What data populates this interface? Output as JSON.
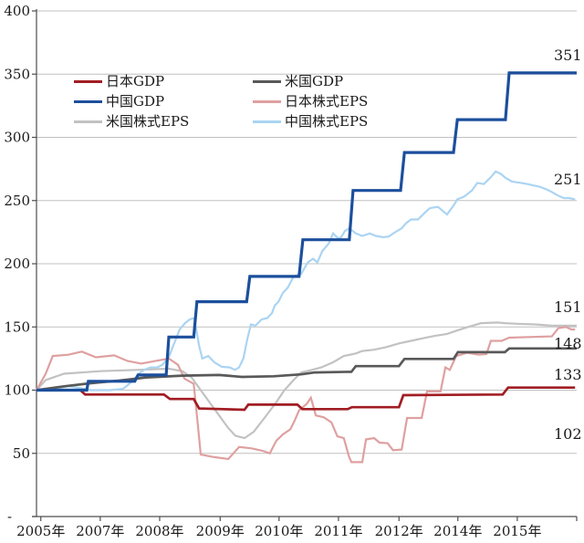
{
  "chart_data": {
    "type": "line",
    "title": "",
    "grid": true,
    "ylim": [
      0,
      400
    ],
    "ytick_step": 50,
    "y_ticks": [
      {
        "value": 0,
        "label": "-"
      },
      {
        "value": 50,
        "label": "50"
      },
      {
        "value": 100,
        "label": "100"
      },
      {
        "value": 150,
        "label": "150"
      },
      {
        "value": 200,
        "label": "200"
      },
      {
        "value": 250,
        "label": "250"
      },
      {
        "value": 300,
        "label": "300"
      },
      {
        "value": 350,
        "label": "350"
      },
      {
        "value": 400,
        "label": "400"
      }
    ],
    "x_ticks": [
      {
        "label": "2005年",
        "pos": 0.8
      },
      {
        "label": "2007年",
        "pos": 11.8
      },
      {
        "label": "2008年",
        "pos": 22.8
      },
      {
        "label": "2009年",
        "pos": 34.0
      },
      {
        "label": "2010年",
        "pos": 44.9
      },
      {
        "label": "2011年",
        "pos": 55.9
      },
      {
        "label": "2012年",
        "pos": 67.1
      },
      {
        "label": "2014年",
        "pos": 78.0
      },
      {
        "label": "2015年",
        "pos": 89.0
      }
    ],
    "legend_position": "top-left-two-columns",
    "series": [
      {
        "id": "us_eps",
        "label": "米国株式EPS",
        "color": "#C2C2C2",
        "width": 2.2,
        "points": [
          [
            0,
            100
          ],
          [
            1.7,
            108
          ],
          [
            5.1,
            113
          ],
          [
            11.8,
            115
          ],
          [
            18.6,
            116
          ],
          [
            24.5,
            117
          ],
          [
            27,
            115
          ],
          [
            28.7,
            110
          ],
          [
            30.4,
            100
          ],
          [
            32.1,
            90
          ],
          [
            33.8,
            80
          ],
          [
            35.5,
            70
          ],
          [
            36.8,
            64
          ],
          [
            38.5,
            62
          ],
          [
            40.2,
            67
          ],
          [
            42.2,
            78
          ],
          [
            44.3,
            90
          ],
          [
            45.9,
            100
          ],
          [
            47.6,
            108
          ],
          [
            49,
            114
          ],
          [
            51,
            116
          ],
          [
            52.7,
            118
          ],
          [
            54.9,
            122
          ],
          [
            56.9,
            127
          ],
          [
            59.1,
            129
          ],
          [
            60.3,
            131
          ],
          [
            62.5,
            132
          ],
          [
            64.7,
            134
          ],
          [
            67.1,
            137
          ],
          [
            69.3,
            139
          ],
          [
            71.5,
            141
          ],
          [
            73.8,
            143
          ],
          [
            76,
            144.5
          ],
          [
            77.7,
            147
          ],
          [
            79.9,
            150
          ],
          [
            82.3,
            153
          ],
          [
            85.3,
            153.5
          ],
          [
            86.7,
            153
          ],
          [
            89,
            152.5
          ],
          [
            92.4,
            152
          ],
          [
            95.4,
            151
          ],
          [
            100,
            151
          ]
        ]
      },
      {
        "id": "china_eps",
        "label": "中国株式EPS",
        "color": "#ABD4F2",
        "width": 2.2,
        "points": [
          [
            0,
            100
          ],
          [
            3.4,
            101
          ],
          [
            5.9,
            103
          ],
          [
            7.6,
            102
          ],
          [
            10.1,
            100
          ],
          [
            13.5,
            100
          ],
          [
            16,
            101
          ],
          [
            16.9,
            104
          ],
          [
            18.2,
            109
          ],
          [
            18.9,
            113
          ],
          [
            19.9,
            116
          ],
          [
            21.1,
            118
          ],
          [
            22.3,
            118
          ],
          [
            23.3,
            120
          ],
          [
            24.5,
            126
          ],
          [
            25.3,
            135
          ],
          [
            26.5,
            148
          ],
          [
            27.5,
            153
          ],
          [
            28.4,
            156
          ],
          [
            29.2,
            157
          ],
          [
            30.1,
            135
          ],
          [
            30.7,
            125
          ],
          [
            31.8,
            127
          ],
          [
            32.9,
            122
          ],
          [
            34.3,
            118.5
          ],
          [
            35.8,
            118
          ],
          [
            36.7,
            116
          ],
          [
            37.5,
            118
          ],
          [
            38.3,
            125
          ],
          [
            39,
            140
          ],
          [
            39.7,
            152
          ],
          [
            40.5,
            151
          ],
          [
            41.7,
            156
          ],
          [
            42.7,
            157
          ],
          [
            43.6,
            161
          ],
          [
            44.1,
            167
          ],
          [
            44.8,
            170
          ],
          [
            45.6,
            177
          ],
          [
            46.5,
            181
          ],
          [
            47.6,
            190
          ],
          [
            49,
            192
          ],
          [
            50.2,
            201
          ],
          [
            51.2,
            204
          ],
          [
            52,
            201
          ],
          [
            52.9,
            210
          ],
          [
            54.1,
            216
          ],
          [
            54.9,
            224
          ],
          [
            55.9,
            220
          ],
          [
            56.4,
            221
          ],
          [
            57.1,
            226
          ],
          [
            57.9,
            228
          ],
          [
            59.1,
            224
          ],
          [
            60.3,
            222
          ],
          [
            61.7,
            224
          ],
          [
            62.8,
            222
          ],
          [
            64.2,
            221
          ],
          [
            65.2,
            221.5
          ],
          [
            66.4,
            225
          ],
          [
            67.6,
            228
          ],
          [
            68.4,
            232
          ],
          [
            69.3,
            235
          ],
          [
            70.6,
            235
          ],
          [
            71.8,
            240
          ],
          [
            72.8,
            244
          ],
          [
            74.3,
            245
          ],
          [
            76,
            239
          ],
          [
            77.2,
            246
          ],
          [
            77.9,
            251
          ],
          [
            79.1,
            253
          ],
          [
            80.6,
            258
          ],
          [
            81.6,
            264
          ],
          [
            82.8,
            263
          ],
          [
            84,
            268
          ],
          [
            85,
            273
          ],
          [
            86,
            271
          ],
          [
            86.8,
            268
          ],
          [
            88,
            265
          ],
          [
            89.7,
            264
          ],
          [
            90.9,
            263
          ],
          [
            91.9,
            262
          ],
          [
            93.1,
            261
          ],
          [
            94.3,
            259
          ],
          [
            95.3,
            257
          ],
          [
            96.5,
            254
          ],
          [
            97.6,
            252
          ],
          [
            98.6,
            252
          ],
          [
            99.7,
            251
          ]
        ]
      },
      {
        "id": "japan_eps",
        "label": "日本株式EPS",
        "color": "#DFA0A0",
        "width": 2.2,
        "points": [
          [
            0,
            100
          ],
          [
            1.7,
            113
          ],
          [
            3,
            127
          ],
          [
            5.9,
            128
          ],
          [
            8.4,
            130.5
          ],
          [
            11,
            126
          ],
          [
            14.4,
            127.5
          ],
          [
            16.9,
            123
          ],
          [
            19.4,
            121
          ],
          [
            22,
            123
          ],
          [
            24.5,
            125
          ],
          [
            26.2,
            120
          ],
          [
            27.4,
            109
          ],
          [
            29.1,
            105
          ],
          [
            29.7,
            80
          ],
          [
            30.4,
            49
          ],
          [
            32.9,
            47
          ],
          [
            35.5,
            45.5
          ],
          [
            37.5,
            55
          ],
          [
            39.7,
            54
          ],
          [
            41.9,
            52
          ],
          [
            43.2,
            50
          ],
          [
            44.4,
            60
          ],
          [
            45.6,
            65
          ],
          [
            47,
            69
          ],
          [
            47.8,
            76
          ],
          [
            48.6,
            84
          ],
          [
            50,
            89
          ],
          [
            50.8,
            94
          ],
          [
            51.7,
            80
          ],
          [
            53.2,
            78.5
          ],
          [
            54.6,
            74.5
          ],
          [
            55.7,
            63.5
          ],
          [
            56.9,
            62
          ],
          [
            57.8,
            48
          ],
          [
            58.3,
            43
          ],
          [
            60.3,
            43
          ],
          [
            61,
            61
          ],
          [
            62.5,
            62
          ],
          [
            63.5,
            58.5
          ],
          [
            65,
            58
          ],
          [
            66,
            52.5
          ],
          [
            67.6,
            53
          ],
          [
            68.6,
            78
          ],
          [
            71.3,
            78
          ],
          [
            72.3,
            99
          ],
          [
            74.8,
            99
          ],
          [
            75.7,
            118
          ],
          [
            76.5,
            116
          ],
          [
            77.7,
            127
          ],
          [
            79.7,
            129.5
          ],
          [
            81.9,
            128
          ],
          [
            83.3,
            128.5
          ],
          [
            84.1,
            139
          ],
          [
            86.1,
            139
          ],
          [
            87.5,
            141.5
          ],
          [
            95.4,
            142.5
          ],
          [
            96.6,
            149
          ],
          [
            98,
            150
          ],
          [
            99,
            148
          ],
          [
            99.7,
            148
          ]
        ]
      },
      {
        "id": "us_gdp",
        "label": "米国GDP",
        "color": "#595959",
        "width": 2.7,
        "points": [
          [
            0,
            100
          ],
          [
            5.1,
            103
          ],
          [
            10.1,
            105.5
          ],
          [
            15.2,
            107.5
          ],
          [
            20.3,
            110
          ],
          [
            27,
            111.5
          ],
          [
            33.8,
            112
          ],
          [
            38,
            110.5
          ],
          [
            43.9,
            111
          ],
          [
            49,
            112.5
          ],
          [
            51.5,
            114
          ],
          [
            58.3,
            114.5
          ],
          [
            59.1,
            119
          ],
          [
            67.1,
            119
          ],
          [
            68.1,
            124.7
          ],
          [
            77.2,
            124.7
          ],
          [
            78,
            130
          ],
          [
            86.7,
            130
          ],
          [
            87.5,
            133
          ],
          [
            100,
            133
          ]
        ]
      },
      {
        "id": "japan_gdp",
        "label": "日本GDP",
        "color": "#A11D23",
        "width": 2.7,
        "points": [
          [
            0,
            100
          ],
          [
            8.1,
            100
          ],
          [
            9,
            96.5
          ],
          [
            23.6,
            96.5
          ],
          [
            24.7,
            93
          ],
          [
            29.1,
            93
          ],
          [
            30.1,
            85.5
          ],
          [
            38.5,
            84.5
          ],
          [
            39.2,
            88.5
          ],
          [
            48.3,
            88.5
          ],
          [
            49.2,
            85
          ],
          [
            57.6,
            85
          ],
          [
            58.4,
            86.5
          ],
          [
            67.1,
            86.5
          ],
          [
            67.9,
            96
          ],
          [
            86.3,
            96.5
          ],
          [
            87.3,
            102
          ],
          [
            99.7,
            102
          ]
        ]
      },
      {
        "id": "china_gdp",
        "label": "中国GDP",
        "color": "#1C4F9C",
        "width": 3.2,
        "points": [
          [
            0,
            100
          ],
          [
            9.3,
            100
          ],
          [
            9.6,
            107
          ],
          [
            18.2,
            107
          ],
          [
            18.8,
            112
          ],
          [
            24,
            112
          ],
          [
            24.5,
            142
          ],
          [
            29.1,
            142
          ],
          [
            29.7,
            170
          ],
          [
            38.9,
            170
          ],
          [
            39.5,
            190
          ],
          [
            48.6,
            190
          ],
          [
            49.3,
            219
          ],
          [
            57.9,
            219
          ],
          [
            58.6,
            258
          ],
          [
            67.4,
            258
          ],
          [
            68.1,
            288
          ],
          [
            77.2,
            288
          ],
          [
            77.9,
            314
          ],
          [
            86.8,
            314
          ],
          [
            87.5,
            351
          ],
          [
            100,
            351
          ]
        ]
      }
    ],
    "end_labels": [
      {
        "text": "351",
        "series": "china_gdp"
      },
      {
        "text": "251",
        "series": "china_eps"
      },
      {
        "text": "151",
        "series": "us_eps"
      },
      {
        "text": "148",
        "series": "japan_eps"
      },
      {
        "text": "133",
        "series": "us_gdp"
      },
      {
        "text": "102",
        "series": "japan_gdp"
      }
    ]
  },
  "legend": {
    "items": [
      {
        "label": "日本GDP",
        "series": "japan_gdp"
      },
      {
        "label": "米国GDP",
        "series": "us_gdp"
      },
      {
        "label": "中国GDP",
        "series": "china_gdp"
      },
      {
        "label": "日本株式EPS",
        "series": "japan_eps"
      },
      {
        "label": "米国株式EPS",
        "series": "us_eps"
      },
      {
        "label": "中国株式EPS",
        "series": "china_eps"
      }
    ]
  },
  "colors": {
    "gridline": "#C0C0C0",
    "axis": "#4D4D4D",
    "text": "#1A1A1A"
  }
}
